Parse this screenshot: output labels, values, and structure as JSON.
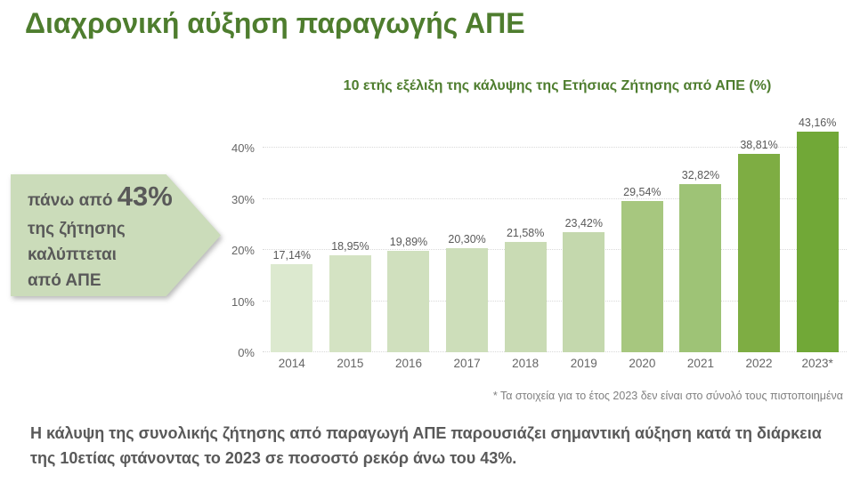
{
  "page": {
    "title": "Διαχρονική αύξηση παραγωγής ΑΠΕ",
    "footnote": "* Τα στοιχεία για το έτος 2023 δεν είναι στο σύνολό τους πιστοποιημένα",
    "summary": "Η κάλυψη της συνολικής ζήτησης από παραγωγή ΑΠΕ παρουσιάζει σημαντική αύξηση κατά τη διάρκεια της 10ετίας φτάνοντας το 2023 σε ποσοστό ρεκόρ άνω του 43%."
  },
  "callout": {
    "prefix": "πάνω από",
    "highlight": "43%",
    "lines": [
      "της ζήτησης",
      "καλύπτεται",
      "από ΑΠΕ"
    ]
  },
  "chart_data": {
    "type": "bar",
    "title": "10 ετής εξέλιξη της κάλυψης της Ετήσιας Ζήτησης από ΑΠΕ (%)",
    "categories": [
      "2014",
      "2015",
      "2016",
      "2017",
      "2018",
      "2019",
      "2020",
      "2021",
      "2022",
      "2023*"
    ],
    "values": [
      17.14,
      18.95,
      19.89,
      20.3,
      21.58,
      23.42,
      29.54,
      32.82,
      38.81,
      43.16
    ],
    "value_labels": [
      "17,14%",
      "18,95%",
      "19,89%",
      "20,30%",
      "21,58%",
      "23,42%",
      "29,54%",
      "32,82%",
      "38,81%",
      "43,16%"
    ],
    "bar_colors": [
      "#dce9cf",
      "#d4e3c3",
      "#d0e0be",
      "#cddeba",
      "#c9dbb4",
      "#c4d8ad",
      "#a7c77f",
      "#9ec376",
      "#7ead43",
      "#71a837"
    ],
    "y_ticks": [
      "0%",
      "10%",
      "20%",
      "30%",
      "40%"
    ],
    "ylim": [
      0,
      45
    ],
    "grid": "horizontal-dotted",
    "legend": "none",
    "xlabel": "",
    "ylabel": ""
  },
  "colors": {
    "title_green": "#4e7d2e",
    "text_gray": "#595959",
    "axis_gray": "#666666",
    "footnote_gray": "#808080",
    "gridline_gray": "#d9d9d9",
    "callout_fill": "#cbdcba",
    "background": "#ffffff"
  }
}
